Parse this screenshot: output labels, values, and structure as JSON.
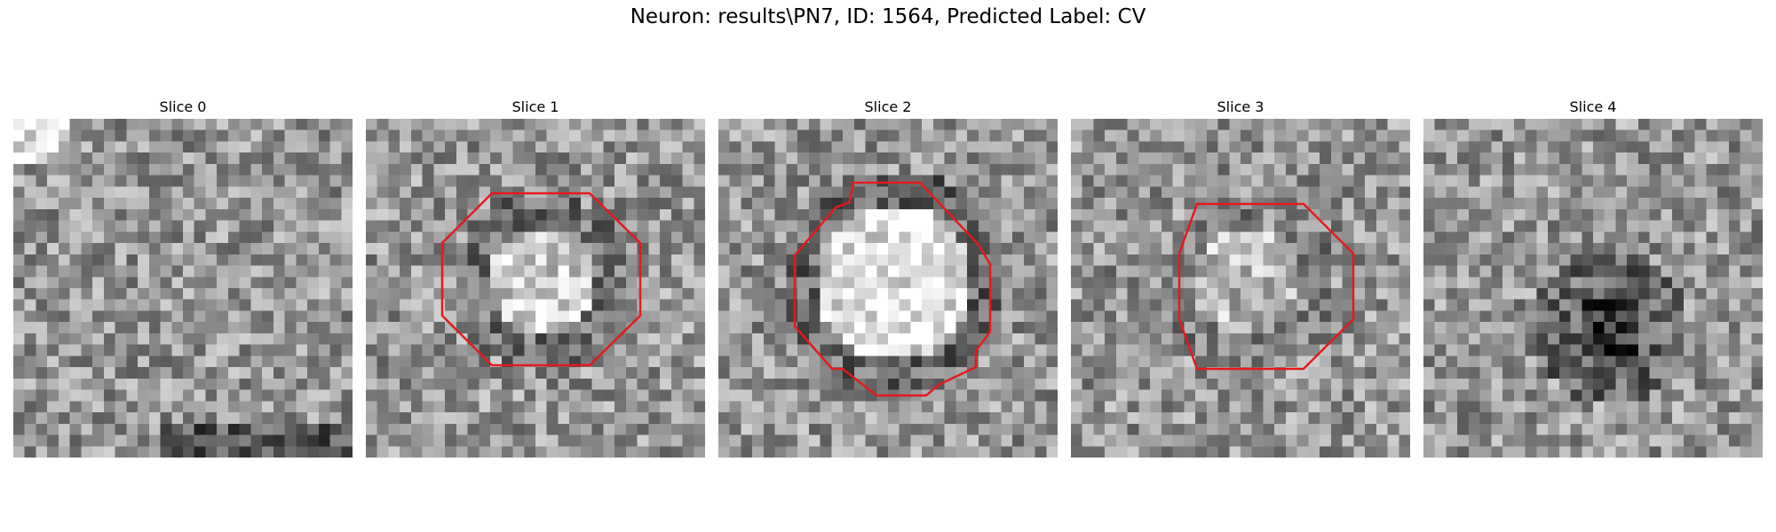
{
  "figure": {
    "title": "Neuron: results\\PN7, ID: 1564, Predicted Label: CV"
  },
  "slices": [
    {
      "label": "Slice 0",
      "contour": false,
      "contour_kind": "none",
      "blob": "none"
    },
    {
      "label": "Slice 1",
      "contour": true,
      "contour_kind": "octagon-medium",
      "blob": "bright-medium"
    },
    {
      "label": "Slice 2",
      "contour": true,
      "contour_kind": "octagon-large",
      "blob": "bright-large"
    },
    {
      "label": "Slice 3",
      "contour": true,
      "contour_kind": "octagon-small",
      "blob": "bright-small"
    },
    {
      "label": "Slice 4",
      "contour": false,
      "contour_kind": "none",
      "blob": "dark-ring"
    }
  ],
  "colors": {
    "contour": "#e41a1c",
    "colormap": "grayscale"
  }
}
